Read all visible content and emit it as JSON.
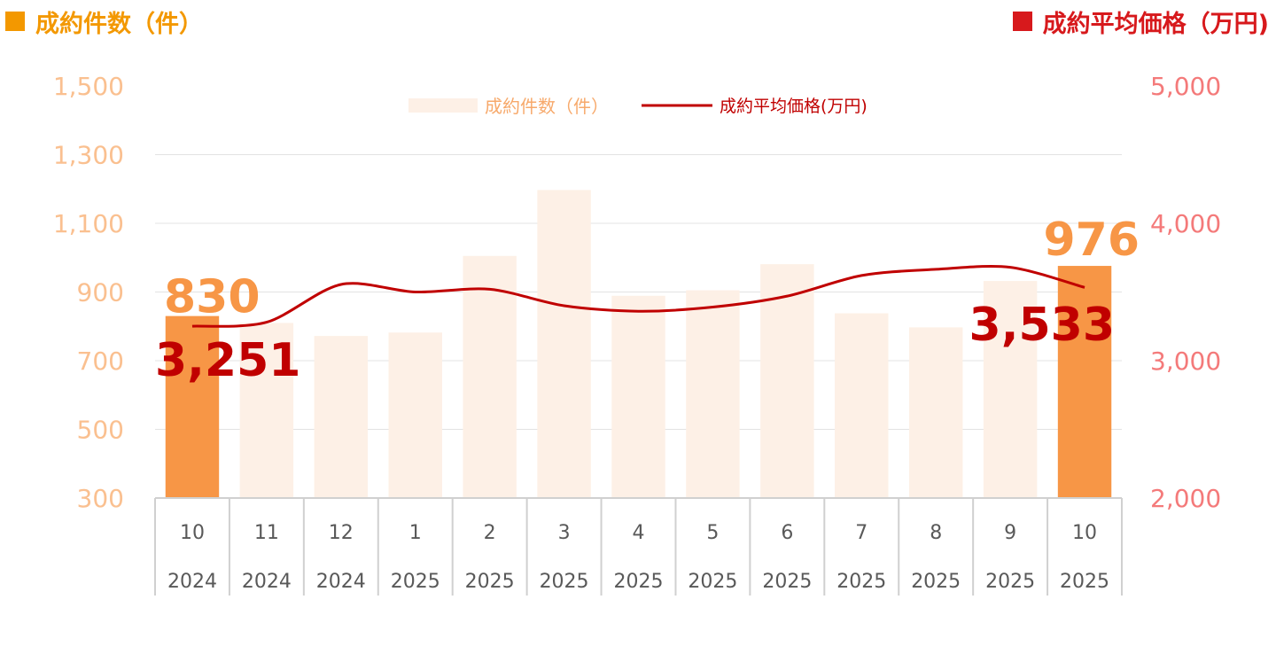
{
  "header": {
    "left_label": "成約件数（件）",
    "right_label": "成約平均価格（万円)",
    "left_color": "#F39800",
    "right_color": "#D7191C"
  },
  "chart_data": {
    "type": "bar",
    "categories": [
      {
        "month": "10",
        "year": "2024"
      },
      {
        "month": "11",
        "year": "2024"
      },
      {
        "month": "12",
        "year": "2024"
      },
      {
        "month": "1",
        "year": "2025"
      },
      {
        "month": "2",
        "year": "2025"
      },
      {
        "month": "3",
        "year": "2025"
      },
      {
        "month": "4",
        "year": "2025"
      },
      {
        "month": "5",
        "year": "2025"
      },
      {
        "month": "6",
        "year": "2025"
      },
      {
        "month": "7",
        "year": "2025"
      },
      {
        "month": "8",
        "year": "2025"
      },
      {
        "month": "9",
        "year": "2025"
      },
      {
        "month": "10",
        "year": "2025"
      }
    ],
    "series": [
      {
        "name": "成約件数（件）",
        "kind": "bar",
        "axis": "left",
        "values": [
          830,
          810,
          772,
          782,
          1005,
          1197,
          889,
          905,
          981,
          838,
          797,
          932,
          976
        ],
        "highlight": [
          0,
          12
        ],
        "color": "#FDF0E6",
        "highlight_color": "#F79646"
      },
      {
        "name": "成約平均価格(万円)",
        "kind": "line",
        "axis": "right",
        "values": [
          3251,
          3280,
          3555,
          3500,
          3520,
          3400,
          3360,
          3390,
          3470,
          3620,
          3665,
          3680,
          3533
        ],
        "color": "#C00000"
      }
    ],
    "y_left": {
      "min": 300,
      "max": 1500,
      "ticks": [
        "300",
        "500",
        "700",
        "900",
        "1,100",
        "1,300",
        "1,500"
      ],
      "color": "#FAC090"
    },
    "y_right": {
      "min": 2000,
      "max": 5000,
      "ticks": [
        "2,000",
        "3,000",
        "4,000",
        "5,000"
      ],
      "color": "#F47A7A"
    },
    "data_labels": [
      {
        "text": "830",
        "color": "#F79646"
      },
      {
        "text": "3,251",
        "color": "#C00000"
      },
      {
        "text": "976",
        "color": "#F79646"
      },
      {
        "text": "3,533",
        "color": "#C00000"
      }
    ],
    "legend_position": "top-center",
    "grid": true,
    "title": "",
    "xlabel": "",
    "ylabel": ""
  }
}
